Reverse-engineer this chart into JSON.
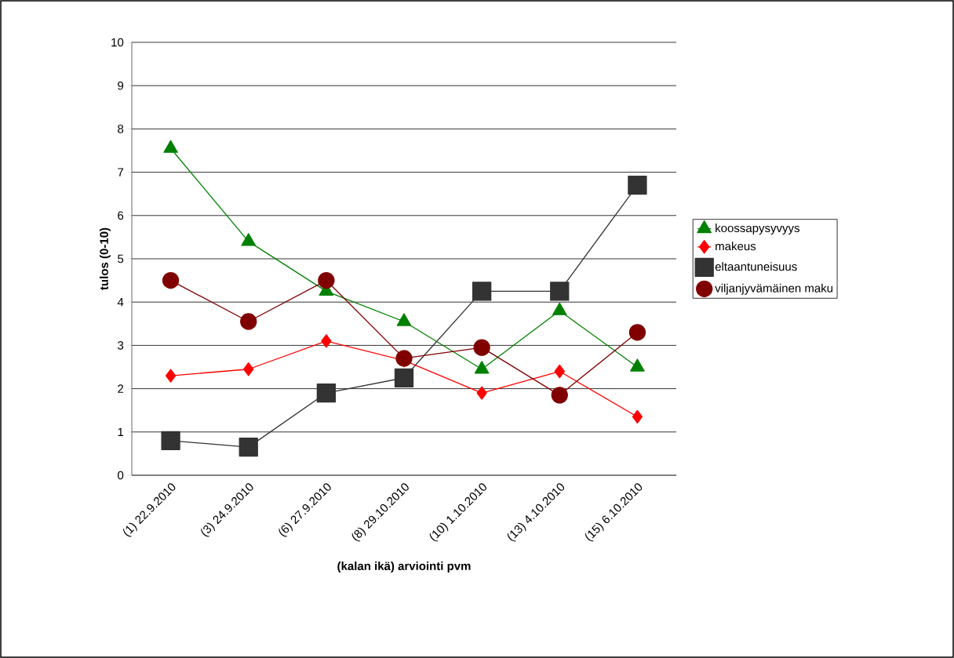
{
  "chart_data": {
    "type": "line",
    "xlabel": "(kalan ikä) arviointi pvm",
    "ylabel": "tulos (0-10)",
    "categories": [
      "(1) 22.9.2010",
      "(3) 24.9.2010",
      "(6) 27.9.2010",
      "(8) 29.10.2010",
      "(10) 1.10.2010",
      "(13) 4.10.2010",
      "(15) 6.10.2010"
    ],
    "series": [
      {
        "name": "koossapysyvyys",
        "color": "#008000",
        "marker": "triangle",
        "values": [
          7.55,
          5.4,
          4.25,
          3.55,
          2.45,
          3.8,
          2.5
        ]
      },
      {
        "name": "makeus",
        "color": "#ff0000",
        "marker": "diamond",
        "values": [
          2.3,
          2.45,
          3.1,
          2.65,
          1.9,
          2.4,
          1.35
        ]
      },
      {
        "name": "eltaantuneisuus",
        "color": "#333333",
        "marker": "square",
        "values": [
          0.8,
          0.65,
          1.9,
          2.25,
          4.25,
          4.25,
          6.7
        ]
      },
      {
        "name": "viljanjyvämäinen maku",
        "color": "#800000",
        "marker": "circle",
        "values": [
          4.5,
          3.55,
          4.5,
          2.7,
          2.95,
          1.85,
          3.3
        ]
      }
    ],
    "ylim": [
      0,
      10
    ],
    "yticks": [
      0,
      1,
      2,
      3,
      4,
      5,
      6,
      7,
      8,
      9,
      10
    ],
    "grid": "y",
    "legend": "right",
    "line_style": "solid"
  }
}
